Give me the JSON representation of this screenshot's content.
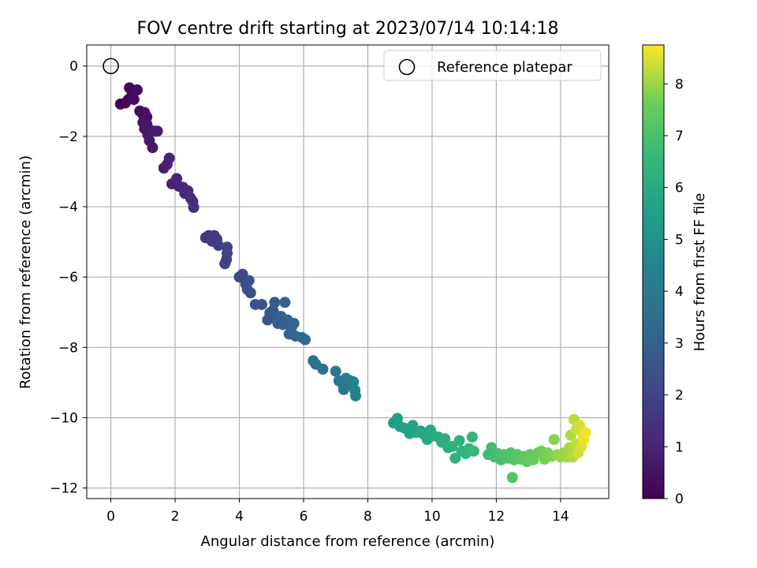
{
  "chart_data": {
    "type": "scatter",
    "title": "FOV centre drift starting at 2023/07/14 10:14:18",
    "xlabel": "Angular distance from reference (arcmin)",
    "ylabel": "Rotation from reference (arcmin)",
    "xlim": [
      -0.75,
      15.5
    ],
    "ylim": [
      -12.3,
      0.6
    ],
    "xticks": [
      0,
      2,
      4,
      6,
      8,
      10,
      12,
      14
    ],
    "yticks": [
      0,
      -2,
      -4,
      -6,
      -8,
      -10,
      -12
    ],
    "grid": true,
    "legend": {
      "position": "top-right",
      "entries": [
        "Reference platepar"
      ]
    },
    "reference_point": {
      "x": 0,
      "y": 0,
      "label": "Reference platepar"
    },
    "colorbar": {
      "label": "Hours from first FF file",
      "range": [
        0,
        8.75
      ],
      "ticks": [
        0,
        1,
        2,
        3,
        4,
        5,
        6,
        7,
        8
      ],
      "colormap": "viridis"
    },
    "points": [
      {
        "x": 0.3,
        "y": -1.08,
        "t": 0.05
      },
      {
        "x": 0.45,
        "y": -1.05,
        "t": 0.1
      },
      {
        "x": 0.55,
        "y": -0.95,
        "t": 0.15
      },
      {
        "x": 0.58,
        "y": -0.62,
        "t": 0.2
      },
      {
        "x": 0.65,
        "y": -0.85,
        "t": 0.22
      },
      {
        "x": 0.72,
        "y": -0.95,
        "t": 0.25
      },
      {
        "x": 0.82,
        "y": -0.68,
        "t": 0.28
      },
      {
        "x": 0.9,
        "y": -1.28,
        "t": 0.32
      },
      {
        "x": 0.98,
        "y": -1.35,
        "t": 0.38
      },
      {
        "x": 1.05,
        "y": -1.32,
        "t": 0.42
      },
      {
        "x": 1.12,
        "y": -1.45,
        "t": 0.45
      },
      {
        "x": 1.0,
        "y": -1.6,
        "t": 0.48
      },
      {
        "x": 1.05,
        "y": -1.78,
        "t": 0.52
      },
      {
        "x": 1.12,
        "y": -1.65,
        "t": 0.55
      },
      {
        "x": 1.2,
        "y": -1.8,
        "t": 0.58
      },
      {
        "x": 1.15,
        "y": -1.95,
        "t": 0.62
      },
      {
        "x": 1.2,
        "y": -2.12,
        "t": 0.65
      },
      {
        "x": 1.3,
        "y": -2.32,
        "t": 0.68
      },
      {
        "x": 1.38,
        "y": -1.85,
        "t": 0.72
      },
      {
        "x": 1.45,
        "y": -1.85,
        "t": 0.75
      },
      {
        "x": 1.65,
        "y": -2.9,
        "t": 0.82
      },
      {
        "x": 1.75,
        "y": -2.8,
        "t": 0.86
      },
      {
        "x": 1.82,
        "y": -2.62,
        "t": 0.9
      },
      {
        "x": 1.9,
        "y": -3.35,
        "t": 0.95
      },
      {
        "x": 2.05,
        "y": -3.2,
        "t": 1.0
      },
      {
        "x": 2.12,
        "y": -3.42,
        "t": 1.05
      },
      {
        "x": 2.25,
        "y": -3.45,
        "t": 1.1
      },
      {
        "x": 2.3,
        "y": -3.62,
        "t": 1.15
      },
      {
        "x": 2.4,
        "y": -3.55,
        "t": 1.2
      },
      {
        "x": 2.48,
        "y": -3.75,
        "t": 1.25
      },
      {
        "x": 2.55,
        "y": -3.85,
        "t": 1.3
      },
      {
        "x": 2.58,
        "y": -4.02,
        "t": 1.35
      },
      {
        "x": 2.95,
        "y": -4.88,
        "t": 1.55
      },
      {
        "x": 3.05,
        "y": -4.82,
        "t": 1.6
      },
      {
        "x": 3.15,
        "y": -4.98,
        "t": 1.65
      },
      {
        "x": 3.22,
        "y": -4.82,
        "t": 1.7
      },
      {
        "x": 3.3,
        "y": -4.92,
        "t": 1.75
      },
      {
        "x": 3.35,
        "y": -5.1,
        "t": 1.8
      },
      {
        "x": 3.55,
        "y": -5.62,
        "t": 1.88
      },
      {
        "x": 3.6,
        "y": -5.5,
        "t": 1.92
      },
      {
        "x": 3.62,
        "y": -5.32,
        "t": 1.96
      },
      {
        "x": 3.62,
        "y": -5.15,
        "t": 2.0
      },
      {
        "x": 4.0,
        "y": -6.0,
        "t": 2.2
      },
      {
        "x": 4.1,
        "y": -5.92,
        "t": 2.25
      },
      {
        "x": 4.2,
        "y": -6.2,
        "t": 2.3
      },
      {
        "x": 4.3,
        "y": -6.1,
        "t": 2.35
      },
      {
        "x": 4.25,
        "y": -6.35,
        "t": 2.4
      },
      {
        "x": 4.35,
        "y": -6.45,
        "t": 2.45
      },
      {
        "x": 4.5,
        "y": -6.78,
        "t": 2.52
      },
      {
        "x": 4.7,
        "y": -6.78,
        "t": 2.58
      },
      {
        "x": 4.88,
        "y": -7.22,
        "t": 2.65
      },
      {
        "x": 4.95,
        "y": -7.02,
        "t": 2.7
      },
      {
        "x": 5.05,
        "y": -6.95,
        "t": 2.75
      },
      {
        "x": 5.1,
        "y": -6.72,
        "t": 2.8
      },
      {
        "x": 5.15,
        "y": -7.1,
        "t": 2.85
      },
      {
        "x": 5.2,
        "y": -7.32,
        "t": 2.9
      },
      {
        "x": 5.3,
        "y": -7.12,
        "t": 2.95
      },
      {
        "x": 5.35,
        "y": -7.35,
        "t": 3.0
      },
      {
        "x": 5.42,
        "y": -6.72,
        "t": 3.05
      },
      {
        "x": 5.5,
        "y": -7.22,
        "t": 3.1
      },
      {
        "x": 5.55,
        "y": -7.62,
        "t": 3.15
      },
      {
        "x": 5.62,
        "y": -7.45,
        "t": 3.2
      },
      {
        "x": 5.7,
        "y": -7.32,
        "t": 3.25
      },
      {
        "x": 5.75,
        "y": -7.68,
        "t": 3.3
      },
      {
        "x": 5.95,
        "y": -7.72,
        "t": 3.38
      },
      {
        "x": 6.05,
        "y": -7.78,
        "t": 3.45
      },
      {
        "x": 6.3,
        "y": -8.38,
        "t": 3.6
      },
      {
        "x": 6.38,
        "y": -8.48,
        "t": 3.65
      },
      {
        "x": 6.6,
        "y": -8.62,
        "t": 3.75
      },
      {
        "x": 7.0,
        "y": -8.68,
        "t": 3.9
      },
      {
        "x": 7.1,
        "y": -8.95,
        "t": 3.95
      },
      {
        "x": 7.2,
        "y": -9.02,
        "t": 4.0
      },
      {
        "x": 7.25,
        "y": -9.2,
        "t": 4.05
      },
      {
        "x": 7.32,
        "y": -8.88,
        "t": 4.1
      },
      {
        "x": 7.45,
        "y": -8.95,
        "t": 4.15
      },
      {
        "x": 7.5,
        "y": -9.08,
        "t": 4.2
      },
      {
        "x": 7.55,
        "y": -8.98,
        "t": 4.25
      },
      {
        "x": 7.6,
        "y": -9.22,
        "t": 4.3
      },
      {
        "x": 7.62,
        "y": -9.38,
        "t": 4.35
      },
      {
        "x": 8.8,
        "y": -10.15,
        "t": 5.45
      },
      {
        "x": 8.92,
        "y": -10.02,
        "t": 5.5
      },
      {
        "x": 9.0,
        "y": -10.25,
        "t": 5.55
      },
      {
        "x": 9.15,
        "y": -10.3,
        "t": 5.6
      },
      {
        "x": 9.3,
        "y": -10.45,
        "t": 5.65
      },
      {
        "x": 9.4,
        "y": -10.22,
        "t": 5.7
      },
      {
        "x": 9.5,
        "y": -10.42,
        "t": 5.75
      },
      {
        "x": 9.65,
        "y": -10.38,
        "t": 5.8
      },
      {
        "x": 9.75,
        "y": -10.48,
        "t": 5.85
      },
      {
        "x": 9.85,
        "y": -10.62,
        "t": 5.9
      },
      {
        "x": 9.95,
        "y": -10.35,
        "t": 5.95
      },
      {
        "x": 10.05,
        "y": -10.52,
        "t": 6.0
      },
      {
        "x": 10.2,
        "y": -10.55,
        "t": 6.05
      },
      {
        "x": 10.3,
        "y": -10.7,
        "t": 6.1
      },
      {
        "x": 10.4,
        "y": -10.6,
        "t": 6.15
      },
      {
        "x": 10.5,
        "y": -10.85,
        "t": 6.2
      },
      {
        "x": 10.62,
        "y": -10.82,
        "t": 6.25
      },
      {
        "x": 10.72,
        "y": -11.15,
        "t": 6.3
      },
      {
        "x": 10.85,
        "y": -10.65,
        "t": 6.35
      },
      {
        "x": 10.92,
        "y": -10.95,
        "t": 6.4
      },
      {
        "x": 11.05,
        "y": -11.02,
        "t": 6.45
      },
      {
        "x": 11.15,
        "y": -10.88,
        "t": 6.5
      },
      {
        "x": 11.25,
        "y": -10.55,
        "t": 6.55
      },
      {
        "x": 11.3,
        "y": -10.95,
        "t": 6.6
      },
      {
        "x": 11.75,
        "y": -11.05,
        "t": 6.75
      },
      {
        "x": 11.85,
        "y": -10.85,
        "t": 6.8
      },
      {
        "x": 11.95,
        "y": -11.12,
        "t": 6.85
      },
      {
        "x": 12.05,
        "y": -11.02,
        "t": 6.9
      },
      {
        "x": 12.15,
        "y": -11.2,
        "t": 6.95
      },
      {
        "x": 12.25,
        "y": -11.05,
        "t": 7.0
      },
      {
        "x": 12.35,
        "y": -11.15,
        "t": 7.05
      },
      {
        "x": 12.45,
        "y": -11.0,
        "t": 7.1
      },
      {
        "x": 12.5,
        "y": -11.7,
        "t": 7.15
      },
      {
        "x": 12.55,
        "y": -11.2,
        "t": 7.2
      },
      {
        "x": 12.65,
        "y": -11.05,
        "t": 7.25
      },
      {
        "x": 12.75,
        "y": -11.18,
        "t": 7.3
      },
      {
        "x": 12.85,
        "y": -11.1,
        "t": 7.35
      },
      {
        "x": 12.95,
        "y": -11.25,
        "t": 7.4
      },
      {
        "x": 13.05,
        "y": -11.05,
        "t": 7.45
      },
      {
        "x": 13.15,
        "y": -11.2,
        "t": 7.5
      },
      {
        "x": 13.3,
        "y": -11.0,
        "t": 7.6
      },
      {
        "x": 13.4,
        "y": -10.95,
        "t": 7.65
      },
      {
        "x": 13.5,
        "y": -11.18,
        "t": 7.7
      },
      {
        "x": 13.6,
        "y": -11.0,
        "t": 7.75
      },
      {
        "x": 13.72,
        "y": -11.1,
        "t": 7.8
      },
      {
        "x": 13.8,
        "y": -10.62,
        "t": 7.85
      },
      {
        "x": 13.9,
        "y": -11.05,
        "t": 7.9
      },
      {
        "x": 14.0,
        "y": -11.12,
        "t": 7.95
      },
      {
        "x": 14.1,
        "y": -11.0,
        "t": 8.0
      },
      {
        "x": 14.2,
        "y": -11.12,
        "t": 8.05
      },
      {
        "x": 14.28,
        "y": -10.85,
        "t": 8.1
      },
      {
        "x": 14.32,
        "y": -10.5,
        "t": 8.15
      },
      {
        "x": 14.38,
        "y": -11.12,
        "t": 8.2
      },
      {
        "x": 14.42,
        "y": -10.05,
        "t": 8.25
      },
      {
        "x": 14.48,
        "y": -10.75,
        "t": 8.3
      },
      {
        "x": 14.5,
        "y": -10.32,
        "t": 8.35
      },
      {
        "x": 14.55,
        "y": -11.0,
        "t": 8.4
      },
      {
        "x": 14.6,
        "y": -10.22,
        "t": 8.45
      },
      {
        "x": 14.65,
        "y": -10.82,
        "t": 8.5
      },
      {
        "x": 14.7,
        "y": -10.55,
        "t": 8.55
      },
      {
        "x": 14.72,
        "y": -10.62,
        "t": 8.6
      },
      {
        "x": 14.78,
        "y": -10.42,
        "t": 8.65
      }
    ]
  }
}
